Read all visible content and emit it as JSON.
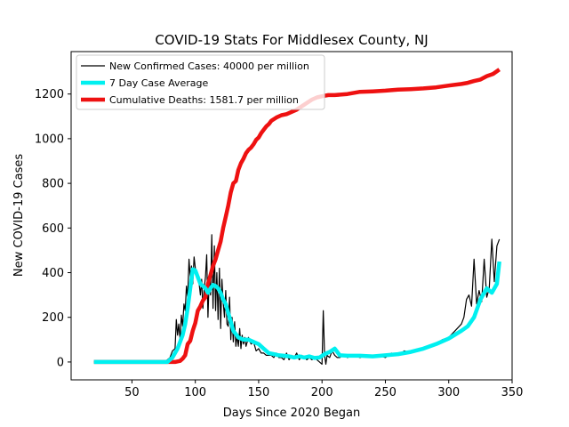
{
  "chart_data": {
    "type": "line",
    "title": "COVID-19 Stats For Middlesex County, NJ",
    "xlabel": "Days Since 2020 Began",
    "ylabel": "New COVID-19 Cases",
    "xlim": [
      2,
      350
    ],
    "ylim": [
      -80,
      1390
    ],
    "xticks": [
      50,
      100,
      150,
      200,
      250,
      300,
      350
    ],
    "yticks": [
      0,
      200,
      400,
      600,
      800,
      1000,
      1200
    ],
    "grid": false,
    "legend_position": "top-left",
    "series": [
      {
        "name": "New Confirmed Cases: 40000 per million",
        "color": "#000000",
        "line_width": 1.2,
        "x": [
          20,
          60,
          76,
          78,
          80,
          82,
          84,
          85,
          86,
          87,
          88,
          89,
          90,
          91,
          92,
          93,
          94,
          95,
          96,
          97,
          98,
          99,
          100,
          101,
          102,
          103,
          104,
          105,
          106,
          107,
          108,
          109,
          110,
          111,
          112,
          113,
          114,
          115,
          116,
          117,
          118,
          119,
          120,
          121,
          122,
          123,
          124,
          125,
          126,
          127,
          128,
          129,
          130,
          131,
          132,
          133,
          134,
          135,
          136,
          137,
          138,
          139,
          140,
          142,
          144,
          146,
          148,
          150,
          152,
          154,
          156,
          158,
          160,
          162,
          164,
          166,
          168,
          170,
          172,
          174,
          176,
          178,
          180,
          182,
          184,
          186,
          188,
          190,
          192,
          194,
          196,
          198,
          200,
          201,
          202,
          203,
          204,
          206,
          208,
          210,
          212,
          214,
          216,
          218,
          220,
          225,
          230,
          235,
          240,
          245,
          250,
          255,
          260,
          265,
          270,
          275,
          280,
          285,
          290,
          295,
          300,
          305,
          310,
          312,
          314,
          316,
          318,
          320,
          322,
          324,
          326,
          328,
          330,
          332,
          334,
          336,
          338,
          340
        ],
        "y": [
          0,
          0,
          0,
          10,
          20,
          50,
          60,
          190,
          120,
          170,
          100,
          210,
          160,
          260,
          230,
          340,
          290,
          460,
          380,
          430,
          350,
          470,
          420,
          400,
          380,
          350,
          300,
          370,
          240,
          330,
          380,
          480,
          200,
          380,
          300,
          570,
          240,
          520,
          230,
          400,
          190,
          420,
          150,
          370,
          270,
          200,
          320,
          170,
          160,
          290,
          100,
          200,
          90,
          180,
          70,
          120,
          70,
          150,
          60,
          120,
          80,
          110,
          70,
          110,
          80,
          90,
          50,
          60,
          40,
          40,
          30,
          30,
          30,
          20,
          40,
          20,
          20,
          10,
          40,
          10,
          30,
          20,
          40,
          10,
          30,
          20,
          10,
          20,
          10,
          20,
          10,
          0,
          -10,
          230,
          30,
          -10,
          30,
          20,
          50,
          30,
          20,
          20,
          30,
          30,
          20,
          30,
          20,
          30,
          20,
          30,
          20,
          40,
          30,
          50,
          40,
          50,
          60,
          70,
          80,
          100,
          110,
          140,
          170,
          200,
          280,
          300,
          250,
          460,
          260,
          320,
          270,
          460,
          290,
          330,
          550,
          360,
          520,
          550
        ]
      },
      {
        "name": "7 Day Case Average",
        "color": "#00f0f0",
        "line_width": 4.5,
        "x": [
          20,
          60,
          78,
          82,
          86,
          90,
          92,
          94,
          96,
          98,
          100,
          102,
          104,
          106,
          108,
          110,
          112,
          114,
          116,
          118,
          120,
          122,
          124,
          126,
          128,
          130,
          134,
          138,
          142,
          146,
          150,
          154,
          158,
          162,
          166,
          170,
          174,
          178,
          182,
          186,
          190,
          194,
          198,
          202,
          206,
          210,
          214,
          220,
          230,
          240,
          250,
          260,
          270,
          280,
          290,
          300,
          310,
          315,
          320,
          325,
          330,
          334,
          338,
          340
        ],
        "y": [
          0,
          0,
          0,
          20,
          60,
          120,
          170,
          240,
          330,
          415,
          410,
          380,
          350,
          340,
          330,
          310,
          330,
          345,
          340,
          330,
          310,
          280,
          260,
          220,
          180,
          140,
          110,
          100,
          100,
          90,
          80,
          60,
          40,
          35,
          30,
          28,
          25,
          20,
          25,
          20,
          25,
          18,
          20,
          35,
          45,
          60,
          30,
          28,
          28,
          25,
          30,
          35,
          45,
          60,
          80,
          105,
          140,
          160,
          200,
          280,
          330,
          310,
          350,
          450
        ]
      },
      {
        "name": "Cumulative Deaths: 1581.7 per million",
        "color": "#ee1111",
        "line_width": 4.5,
        "x": [
          20,
          60,
          78,
          84,
          88,
          90,
          92,
          94,
          96,
          98,
          100,
          102,
          104,
          106,
          108,
          110,
          112,
          114,
          116,
          118,
          120,
          122,
          124,
          126,
          128,
          130,
          132,
          134,
          136,
          138,
          140,
          142,
          144,
          146,
          148,
          150,
          152,
          154,
          156,
          158,
          160,
          164,
          168,
          172,
          176,
          180,
          184,
          188,
          192,
          196,
          200,
          205,
          210,
          220,
          230,
          240,
          250,
          260,
          270,
          280,
          290,
          300,
          310,
          315,
          320,
          325,
          330,
          335,
          340
        ],
        "y": [
          0,
          0,
          0,
          0,
          5,
          15,
          30,
          80,
          95,
          140,
          175,
          230,
          250,
          275,
          290,
          350,
          390,
          430,
          460,
          500,
          540,
          600,
          650,
          700,
          760,
          800,
          810,
          860,
          890,
          910,
          935,
          950,
          960,
          975,
          995,
          1005,
          1025,
          1040,
          1055,
          1065,
          1080,
          1095,
          1105,
          1110,
          1120,
          1130,
          1145,
          1160,
          1175,
          1185,
          1190,
          1195,
          1195,
          1200,
          1210,
          1212,
          1215,
          1220,
          1222,
          1225,
          1230,
          1238,
          1245,
          1250,
          1258,
          1265,
          1280,
          1290,
          1310
        ]
      }
    ]
  }
}
